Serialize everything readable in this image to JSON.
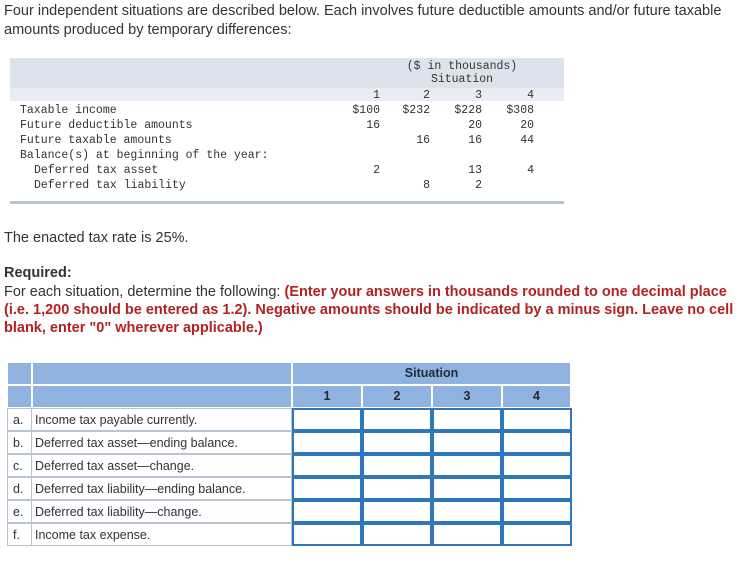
{
  "intro": "Four independent situations are described below. Each involves future deductible amounts and/or future taxable amounts produced by temporary differences:",
  "given": {
    "header_units": "($ in thousands)",
    "header_situation": "Situation",
    "columns": [
      "1",
      "2",
      "3",
      "4"
    ],
    "rows": [
      {
        "label": "Taxable income",
        "values": [
          "$100",
          "$232",
          "$228",
          "$308"
        ]
      },
      {
        "label": "Future deductible amounts",
        "values": [
          "16",
          "",
          "20",
          "20"
        ]
      },
      {
        "label": "Future taxable amounts",
        "values": [
          "",
          "16",
          "16",
          "44"
        ]
      },
      {
        "label": "Balance(s) at beginning of the year:",
        "values": [
          "",
          "",
          "",
          ""
        ]
      },
      {
        "label": "Deferred tax asset",
        "values": [
          "2",
          "",
          "13",
          "4"
        ]
      },
      {
        "label": "Deferred tax liability",
        "values": [
          "",
          "8",
          "2",
          ""
        ]
      }
    ]
  },
  "rate_text": "The enacted tax rate is 25%.",
  "required_title": "Required:",
  "required_text": "For each situation, determine the following:",
  "required_instructions": "(Enter your answers in thousands rounded to one decimal place (i.e. 1,200 should be entered as 1.2). Negative amounts should be indicated by a minus sign. Leave no cell blank, enter \"0\" wherever applicable.)",
  "answer": {
    "situation_header": "Situation",
    "columns": [
      "1",
      "2",
      "3",
      "4"
    ],
    "rows": [
      {
        "letter": "a.",
        "label": "Income tax payable currently."
      },
      {
        "letter": "b.",
        "label": "Deferred tax asset—ending balance."
      },
      {
        "letter": "c.",
        "label": "Deferred tax asset—change."
      },
      {
        "letter": "d.",
        "label": "Deferred tax liability—ending balance."
      },
      {
        "letter": "e.",
        "label": "Deferred tax liability—change."
      },
      {
        "letter": "f.",
        "label": "Income tax expense."
      }
    ]
  }
}
